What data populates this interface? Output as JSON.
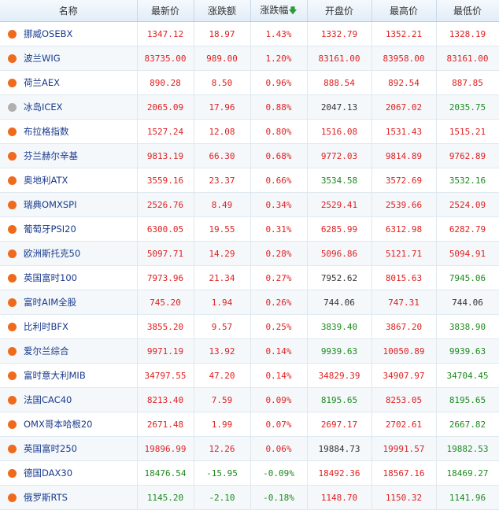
{
  "headers": [
    "名称",
    "最新价",
    "涨跌额",
    "涨跌幅",
    "开盘价",
    "最高价",
    "最低价"
  ],
  "sort_icon": "sort-down-arrow-icon",
  "colors": {
    "up": "#e02020",
    "down": "#1c8a1c",
    "flat": "#333333",
    "dot_active": "#f06a1d",
    "dot_closed": "#b0b0b0"
  },
  "rows": [
    {
      "name": "挪威OSEBX",
      "status": "open",
      "trend": "up",
      "last": "1347.12",
      "change": "18.97",
      "pct": "1.43%",
      "open": "1332.79",
      "open_trend": "up",
      "high": "1352.21",
      "high_trend": "up",
      "low": "1328.19",
      "low_trend": "up"
    },
    {
      "name": "波兰WIG",
      "status": "open",
      "trend": "up",
      "last": "83735.00",
      "change": "989.00",
      "pct": "1.20%",
      "open": "83161.00",
      "open_trend": "up",
      "high": "83958.00",
      "high_trend": "up",
      "low": "83161.00",
      "low_trend": "up"
    },
    {
      "name": "荷兰AEX",
      "status": "open",
      "trend": "up",
      "last": "890.28",
      "change": "8.50",
      "pct": "0.96%",
      "open": "888.54",
      "open_trend": "up",
      "high": "892.54",
      "high_trend": "up",
      "low": "887.85",
      "low_trend": "up"
    },
    {
      "name": "冰岛ICEX",
      "status": "closed",
      "trend": "up",
      "last": "2065.09",
      "change": "17.96",
      "pct": "0.88%",
      "open": "2047.13",
      "open_trend": "flat",
      "high": "2067.02",
      "high_trend": "up",
      "low": "2035.75",
      "low_trend": "down"
    },
    {
      "name": "布拉格指数",
      "status": "open",
      "trend": "up",
      "last": "1527.24",
      "change": "12.08",
      "pct": "0.80%",
      "open": "1516.08",
      "open_trend": "up",
      "high": "1531.43",
      "high_trend": "up",
      "low": "1515.21",
      "low_trend": "up"
    },
    {
      "name": "芬兰赫尔辛基",
      "status": "open",
      "trend": "up",
      "last": "9813.19",
      "change": "66.30",
      "pct": "0.68%",
      "open": "9772.03",
      "open_trend": "up",
      "high": "9814.89",
      "high_trend": "up",
      "low": "9762.89",
      "low_trend": "up"
    },
    {
      "name": "奥地利ATX",
      "status": "open",
      "trend": "up",
      "last": "3559.16",
      "change": "23.37",
      "pct": "0.66%",
      "open": "3534.58",
      "open_trend": "down",
      "high": "3572.69",
      "high_trend": "up",
      "low": "3532.16",
      "low_trend": "down"
    },
    {
      "name": "瑞典OMXSPI",
      "status": "open",
      "trend": "up",
      "last": "2526.76",
      "change": "8.49",
      "pct": "0.34%",
      "open": "2529.41",
      "open_trend": "up",
      "high": "2539.66",
      "high_trend": "up",
      "low": "2524.09",
      "low_trend": "up"
    },
    {
      "name": "葡萄牙PSI20",
      "status": "open",
      "trend": "up",
      "last": "6300.05",
      "change": "19.55",
      "pct": "0.31%",
      "open": "6285.99",
      "open_trend": "up",
      "high": "6312.98",
      "high_trend": "up",
      "low": "6282.79",
      "low_trend": "up"
    },
    {
      "name": "欧洲斯托克50",
      "status": "open",
      "trend": "up",
      "last": "5097.71",
      "change": "14.29",
      "pct": "0.28%",
      "open": "5096.86",
      "open_trend": "up",
      "high": "5121.71",
      "high_trend": "up",
      "low": "5094.91",
      "low_trend": "up"
    },
    {
      "name": "英国富时100",
      "status": "open",
      "trend": "up",
      "last": "7973.96",
      "change": "21.34",
      "pct": "0.27%",
      "open": "7952.62",
      "open_trend": "flat",
      "high": "8015.63",
      "high_trend": "up",
      "low": "7945.06",
      "low_trend": "down"
    },
    {
      "name": "富时AIM全股",
      "status": "open",
      "trend": "up",
      "last": "745.20",
      "change": "1.94",
      "pct": "0.26%",
      "open": "744.06",
      "open_trend": "flat",
      "high": "747.31",
      "high_trend": "up",
      "low": "744.06",
      "low_trend": "flat"
    },
    {
      "name": "比利时BFX",
      "status": "open",
      "trend": "up",
      "last": "3855.20",
      "change": "9.57",
      "pct": "0.25%",
      "open": "3839.40",
      "open_trend": "down",
      "high": "3867.20",
      "high_trend": "up",
      "low": "3838.90",
      "low_trend": "down"
    },
    {
      "name": "爱尔兰综合",
      "status": "open",
      "trend": "up",
      "last": "9971.19",
      "change": "13.92",
      "pct": "0.14%",
      "open": "9939.63",
      "open_trend": "down",
      "high": "10050.89",
      "high_trend": "up",
      "low": "9939.63",
      "low_trend": "down"
    },
    {
      "name": "富时意大利MIB",
      "status": "open",
      "trend": "up",
      "last": "34797.55",
      "change": "47.20",
      "pct": "0.14%",
      "open": "34829.39",
      "open_trend": "up",
      "high": "34907.97",
      "high_trend": "up",
      "low": "34704.45",
      "low_trend": "down"
    },
    {
      "name": "法国CAC40",
      "status": "open",
      "trend": "up",
      "last": "8213.40",
      "change": "7.59",
      "pct": "0.09%",
      "open": "8195.65",
      "open_trend": "down",
      "high": "8253.05",
      "high_trend": "up",
      "low": "8195.65",
      "low_trend": "down"
    },
    {
      "name": "OMX哥本哈根20",
      "status": "open",
      "trend": "up",
      "last": "2671.48",
      "change": "1.99",
      "pct": "0.07%",
      "open": "2697.17",
      "open_trend": "up",
      "high": "2702.61",
      "high_trend": "up",
      "low": "2667.82",
      "low_trend": "down"
    },
    {
      "name": "英国富时250",
      "status": "open",
      "trend": "up",
      "last": "19896.99",
      "change": "12.26",
      "pct": "0.06%",
      "open": "19884.73",
      "open_trend": "flat",
      "high": "19991.57",
      "high_trend": "up",
      "low": "19882.53",
      "low_trend": "down"
    },
    {
      "name": "德国DAX30",
      "status": "open",
      "trend": "down",
      "last": "18476.54",
      "change": "-15.95",
      "pct": "-0.09%",
      "open": "18492.36",
      "open_trend": "up",
      "high": "18567.16",
      "high_trend": "up",
      "low": "18469.27",
      "low_trend": "down"
    },
    {
      "name": "俄罗斯RTS",
      "status": "open",
      "trend": "down",
      "last": "1145.20",
      "change": "-2.10",
      "pct": "-0.18%",
      "open": "1148.70",
      "open_trend": "up",
      "high": "1150.32",
      "high_trend": "up",
      "low": "1141.96",
      "low_trend": "down"
    }
  ]
}
